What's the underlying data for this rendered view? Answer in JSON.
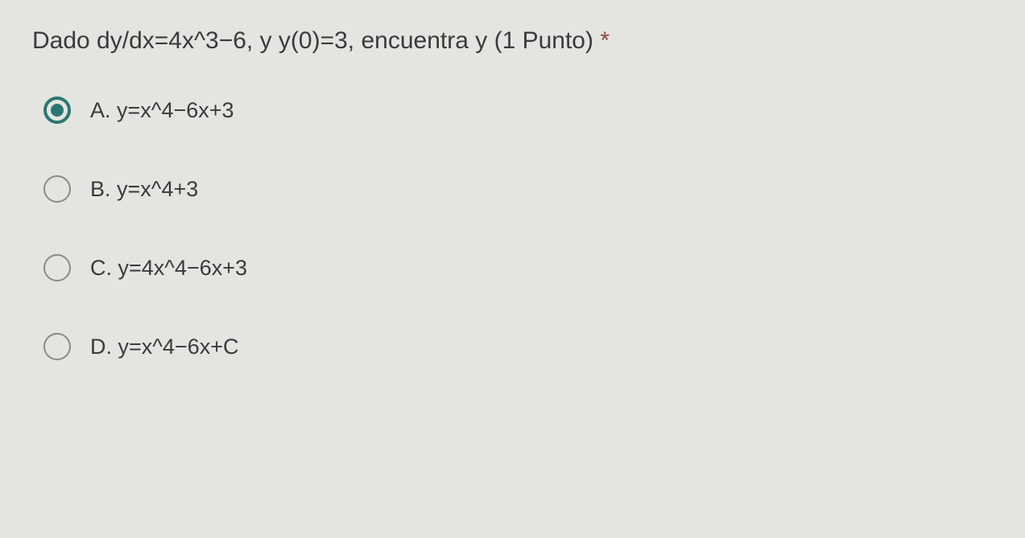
{
  "question": {
    "text": "Dado dy/dx=4x^3−6,  y   y(0)=3, encuentra y (1 Punto)",
    "required_mark": "*"
  },
  "options": [
    {
      "label": "A. y=x^4−6x+3",
      "selected": true
    },
    {
      "label": "B. y=x^4+3",
      "selected": false
    },
    {
      "label": "C. y=4x^4−6x+3",
      "selected": false
    },
    {
      "label": "D. y=x^4−6x+C",
      "selected": false
    }
  ],
  "colors": {
    "background": "#e4e4e0",
    "text": "#3a3a38",
    "accent": "#2a7770",
    "radio_border": "#8a8a86",
    "required": "#8a4a4a"
  }
}
